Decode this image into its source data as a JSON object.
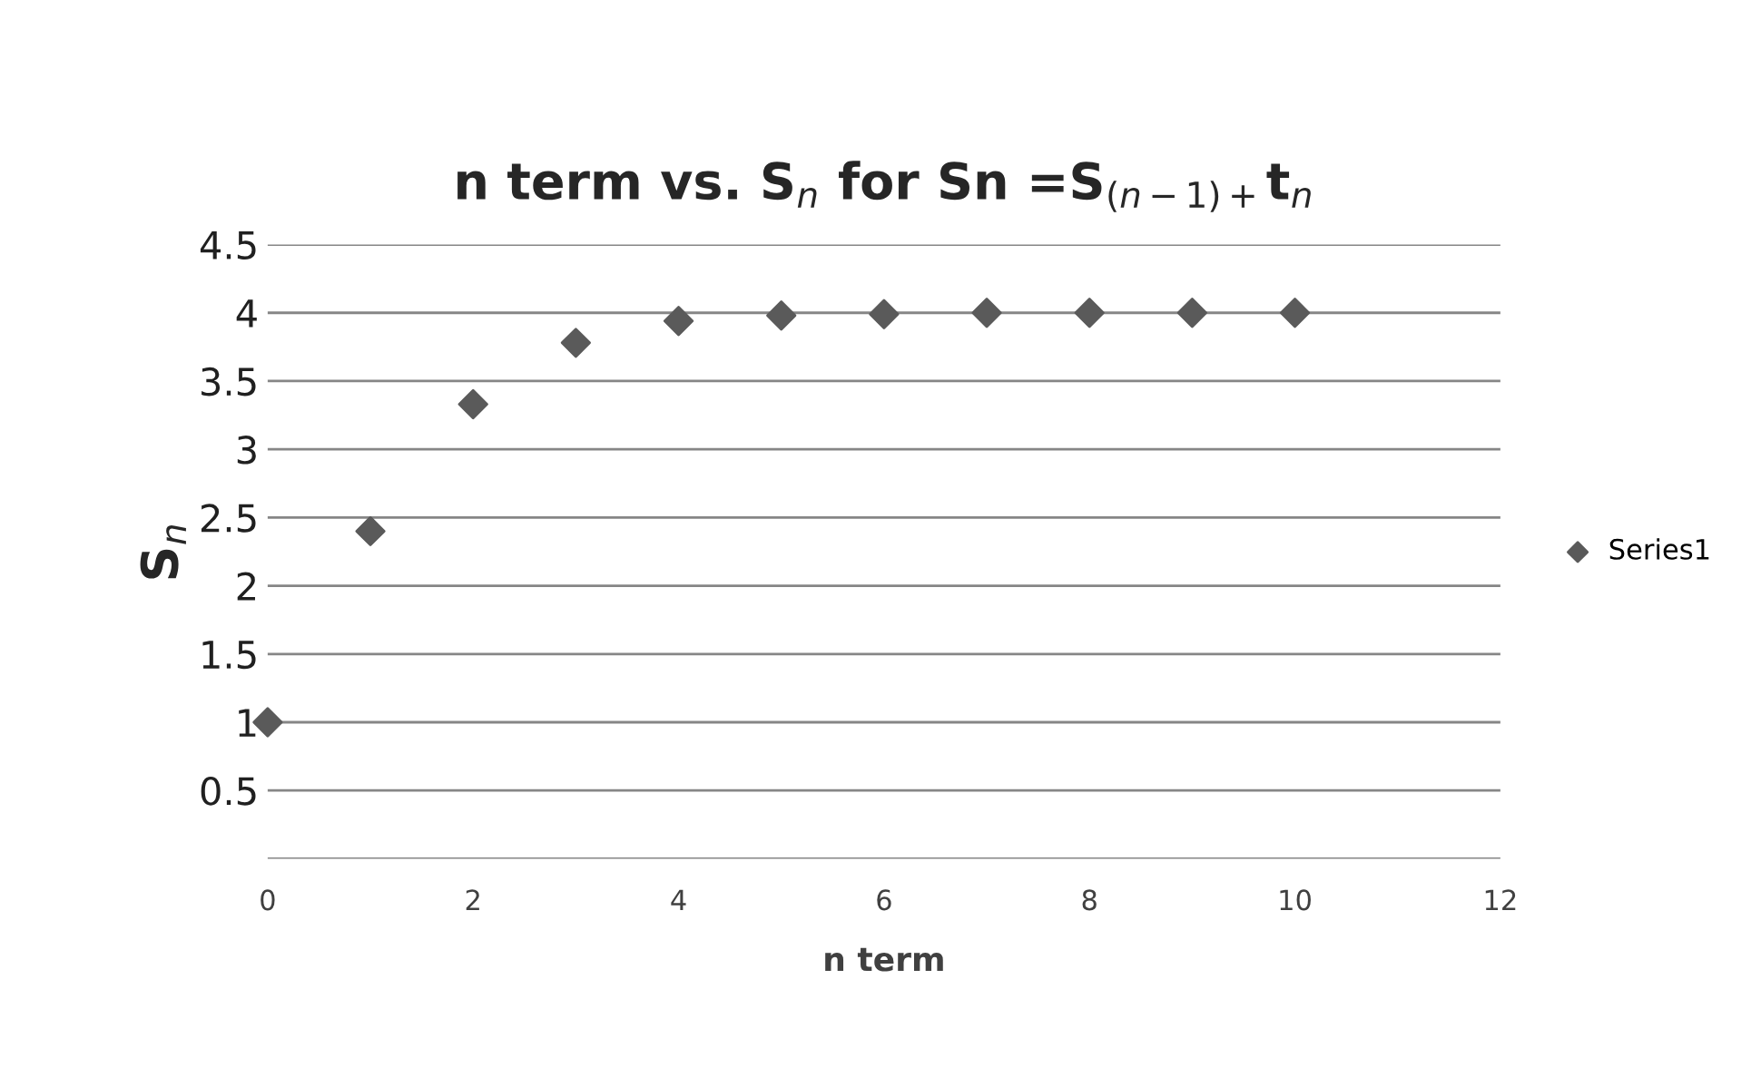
{
  "chart_data": {
    "type": "scatter",
    "title": "n term vs. S$_{n}$ for Sn =S$_{(n−1)+}$t$_{n}$",
    "xlabel": "n term",
    "ylabel": "S$_{n}$",
    "x": [
      0,
      1,
      2,
      3,
      4,
      5,
      6,
      7,
      8,
      9,
      10
    ],
    "series": [
      {
        "name": "Series1",
        "color": "#5a5a5a",
        "values": [
          1,
          2.4,
          3.33,
          3.78,
          3.94,
          3.98,
          3.99,
          4,
          4,
          4,
          4
        ]
      }
    ],
    "xlim": [
      0,
      12
    ],
    "xticks": [
      0,
      2,
      4,
      6,
      8,
      10,
      12
    ],
    "ylim": [
      0,
      4.5
    ],
    "yticks": [
      {
        "value": 0,
        "label": null
      },
      0.5,
      1,
      1.5,
      2,
      2.5,
      3,
      3.5,
      4,
      4.5
    ],
    "grid": "y",
    "legend": "right",
    "marker": "diamond"
  }
}
